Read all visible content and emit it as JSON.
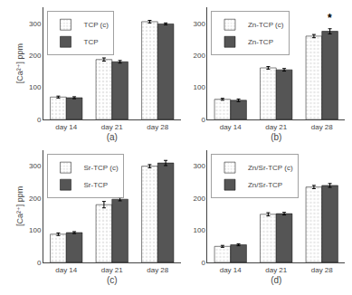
{
  "chart_data": [
    {
      "type": "bar",
      "categories": [
        "day 14",
        "day 21",
        "day 28"
      ],
      "series": [
        {
          "name": "TCP (c)",
          "color": "#e8e8e8",
          "values": [
            70,
            187,
            305
          ],
          "errors": [
            3,
            5,
            4
          ]
        },
        {
          "name": "TCP",
          "color": "#555555",
          "values": [
            68,
            180,
            298
          ],
          "errors": [
            3,
            4,
            3
          ]
        }
      ],
      "xlabel": "(a)",
      "ylabel": "[Ca²⁺] ppm",
      "ylim": [
        0,
        350
      ],
      "yticks": [
        0,
        100,
        200,
        300
      ],
      "grid": false,
      "legend": "upper left"
    },
    {
      "type": "bar",
      "categories": [
        "day 14",
        "day 21",
        "day 28"
      ],
      "series": [
        {
          "name": "Zn-TCP (c)",
          "color": "#e8e8e8",
          "values": [
            63,
            161,
            260
          ],
          "errors": [
            3,
            4,
            5
          ]
        },
        {
          "name": "Zn-TCP",
          "color": "#555555",
          "values": [
            60,
            155,
            275
          ],
          "errors": [
            4,
            4,
            8
          ]
        }
      ],
      "xlabel": "(b)",
      "ylim": [
        0,
        350
      ],
      "yticks": [
        0,
        100,
        200,
        300
      ],
      "grid": false,
      "legend": "upper left",
      "annotations": [
        {
          "text": "*",
          "x": "day 28",
          "series": "Zn-TCP",
          "y": 291
        }
      ]
    },
    {
      "type": "bar",
      "categories": [
        "day 14",
        "day 21",
        "day 28"
      ],
      "series": [
        {
          "name": "Sr-TCP (c)",
          "color": "#e8e8e8",
          "values": [
            88,
            180,
            300
          ],
          "errors": [
            4,
            10,
            5
          ]
        },
        {
          "name": "Sr-TCP",
          "color": "#555555",
          "values": [
            93,
            197,
            310
          ],
          "errors": [
            3,
            5,
            8
          ]
        }
      ],
      "xlabel": "(c)",
      "ylabel": "[Ca²⁺] ppm",
      "ylim": [
        0,
        350
      ],
      "yticks": [
        0,
        100,
        200,
        300
      ],
      "grid": false,
      "legend": "upper left"
    },
    {
      "type": "bar",
      "categories": [
        "day 14",
        "day 21",
        "day 28"
      ],
      "series": [
        {
          "name": "Zn/Sr-TCP (c)",
          "color": "#e8e8e8",
          "values": [
            50,
            150,
            235
          ],
          "errors": [
            3,
            5,
            5
          ]
        },
        {
          "name": "Zn/Sr-TCP",
          "color": "#555555",
          "values": [
            55,
            152,
            240
          ],
          "errors": [
            3,
            4,
            6
          ]
        }
      ],
      "xlabel": "(d)",
      "ylim": [
        0,
        350
      ],
      "yticks": [
        0,
        100,
        200,
        300
      ],
      "grid": false,
      "legend": "upper left"
    }
  ]
}
